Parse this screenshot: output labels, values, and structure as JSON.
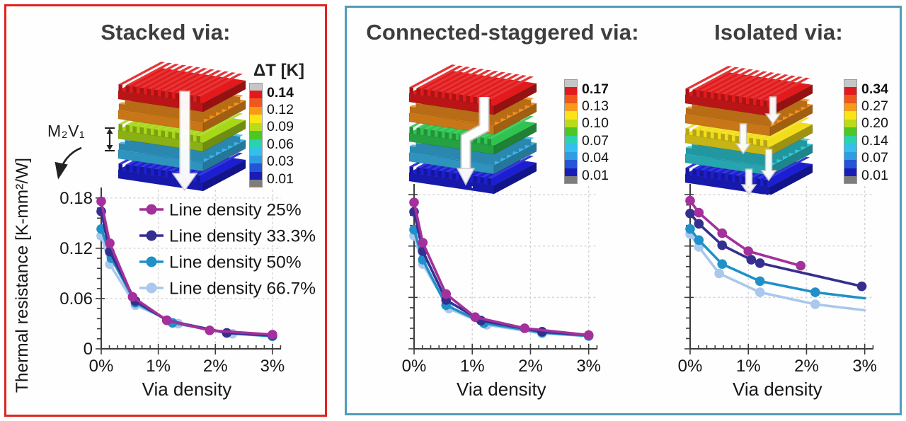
{
  "colorbar_colors": [
    "#c6c6c6",
    "#e21a1c",
    "#ef571d",
    "#f79b17",
    "#fbe316",
    "#b9dc19",
    "#4cc723",
    "#2ad3ae",
    "#33c0ea",
    "#2f9ce4",
    "#2356d6",
    "#1a1cb8",
    "#7d7d7d"
  ],
  "panels": [
    {
      "title": "Stacked via:",
      "border_color": "#e02420",
      "annotation_label": "M₂V₁",
      "colorbar": {
        "title": "ΔT [K]",
        "labels": [
          "0.14",
          "0.12",
          "0.09",
          "0.06",
          "0.03",
          "0.01"
        ],
        "first_label_bold": true
      },
      "stack": {
        "layers": [
          "#e21a1c",
          "#f4901c",
          "#a8d718",
          "#38b4e8",
          "#1b1ed2"
        ],
        "arrow": "straight",
        "dim_marker": true
      },
      "chart_index": 0
    },
    {
      "title": "Connected-staggered via:",
      "border_color": "#4e9dba",
      "colorbar": {
        "title": "",
        "labels": [
          "0.17",
          "0.13",
          "0.10",
          "0.07",
          "0.04",
          "0.01"
        ],
        "first_label_bold": true
      },
      "stack": {
        "layers": [
          "#e21a1c",
          "#f4901c",
          "#2ec44f",
          "#38b4e8",
          "#1b1ed2"
        ],
        "arrow": "staggered",
        "dim_marker": false
      },
      "chart_index": 1
    },
    {
      "title": "Isolated via:",
      "border_color": "#4e9dba",
      "colorbar": {
        "title": "",
        "labels": [
          "0.34",
          "0.27",
          "0.20",
          "0.14",
          "0.07",
          "0.01"
        ],
        "first_label_bold": true
      },
      "stack": {
        "layers": [
          "#e21a1c",
          "#f4901c",
          "#f2dd1a",
          "#2fc9d4",
          "#1b1ed2"
        ],
        "arrow": "multi",
        "dim_marker": false
      },
      "chart_index": 2
    }
  ],
  "chart_data": [
    {
      "type": "line",
      "title": "Stacked via",
      "xlabel": "Via density",
      "ylabel": "Thermal resistance [K-mm²/W]",
      "xlim": [
        0,
        3.15
      ],
      "ylim": [
        0,
        0.19
      ],
      "xticks": {
        "values": [
          0,
          1,
          2,
          3
        ],
        "labels": [
          "0%",
          "1%",
          "2%",
          "3%"
        ]
      },
      "yticks": {
        "values": [
          0,
          0.06,
          0.12,
          0.18
        ],
        "labels": [
          "0",
          "0.06",
          "0.12",
          "0.18"
        ]
      },
      "grid": true,
      "show_ytick_labels": true,
      "legend": true,
      "legend_position": "inside top right",
      "series": [
        {
          "name": "Line density 25%",
          "color": "#a3309b",
          "x": [
            0,
            0.15,
            0.55,
            1.15,
            1.9,
            3.0
          ],
          "y": [
            0.176,
            0.126,
            0.062,
            0.034,
            0.022,
            0.017
          ]
        },
        {
          "name": "Line density 33.3%",
          "color": "#352f8f",
          "x": [
            0,
            0.15,
            0.6,
            1.15,
            2.2,
            3.0
          ],
          "y": [
            0.164,
            0.116,
            0.057,
            0.034,
            0.019,
            0.016
          ]
        },
        {
          "name": "Line density 50%",
          "color": "#2090c8",
          "x": [
            0,
            0.18,
            0.6,
            1.25,
            2.2,
            3.0
          ],
          "y": [
            0.143,
            0.108,
            0.055,
            0.031,
            0.019,
            0.015
          ]
        },
        {
          "name": "Line density 66.7%",
          "color": "#a9c8ec",
          "x": [
            0,
            0.15,
            0.6,
            1.35,
            2.3,
            3.0
          ],
          "y": [
            0.135,
            0.101,
            0.052,
            0.03,
            0.018,
            0.015
          ]
        }
      ]
    },
    {
      "type": "line",
      "title": "Connected-staggered via",
      "xlabel": "Via density",
      "xlim": [
        0,
        3.15
      ],
      "ylim": [
        0,
        0.19
      ],
      "xticks": {
        "values": [
          0,
          1,
          2,
          3
        ],
        "labels": [
          "0%",
          "1%",
          "2%",
          "3%"
        ]
      },
      "yticks": {
        "values": [
          0,
          0.06,
          0.12,
          0.18
        ],
        "labels": [
          "",
          "",
          "",
          ""
        ]
      },
      "grid": true,
      "show_ytick_labels": false,
      "legend": false,
      "series": [
        {
          "name": "Line density 25%",
          "color": "#a3309b",
          "x": [
            0,
            0.15,
            0.55,
            1.05,
            1.9,
            3.0
          ],
          "y": [
            0.171,
            0.124,
            0.064,
            0.037,
            0.024,
            0.016
          ]
        },
        {
          "name": "Line density 33.3%",
          "color": "#352f8f",
          "x": [
            0,
            0.15,
            0.55,
            1.15,
            2.2,
            3.0
          ],
          "y": [
            0.16,
            0.114,
            0.057,
            0.033,
            0.02,
            0.016
          ]
        },
        {
          "name": "Line density 50%",
          "color": "#2090c8",
          "x": [
            0,
            0.15,
            0.55,
            1.2,
            2.2,
            3.0
          ],
          "y": [
            0.139,
            0.104,
            0.051,
            0.03,
            0.019,
            0.015
          ]
        },
        {
          "name": "Line density 66.7%",
          "color": "#a9c8ec",
          "x": [
            0,
            0.15,
            0.6,
            1.25,
            2.2,
            3.0
          ],
          "y": [
            0.132,
            0.099,
            0.047,
            0.028,
            0.018,
            0.015
          ]
        }
      ]
    },
    {
      "type": "line",
      "title": "Isolated via",
      "xlabel": "Via density",
      "xlim": [
        0,
        3.15
      ],
      "ylim": [
        0,
        0.19
      ],
      "xticks": {
        "values": [
          0,
          1,
          2,
          3
        ],
        "labels": [
          "0%",
          "1%",
          "2%",
          "3%"
        ]
      },
      "yticks": {
        "values": [
          0,
          0.06,
          0.12,
          0.18
        ],
        "labels": [
          "",
          "",
          "",
          ""
        ]
      },
      "grid": true,
      "show_ytick_labels": false,
      "legend": false,
      "series": [
        {
          "name": "Line density 25%",
          "color": "#a3309b",
          "x": [
            0,
            0.15,
            0.55,
            1.0,
            1.9
          ],
          "y": [
            0.173,
            0.159,
            0.135,
            0.114,
            0.097
          ]
        },
        {
          "name": "Line density 33.3%",
          "color": "#352f8f",
          "x": [
            0,
            0.15,
            0.55,
            1.05,
            1.2,
            2.95
          ],
          "y": [
            0.158,
            0.146,
            0.121,
            0.104,
            0.1,
            0.073
          ]
        },
        {
          "name": "Line density 50%",
          "color": "#2090c8",
          "x": [
            0,
            0.15,
            0.55,
            1.2,
            2.15,
            3.0
          ],
          "y": [
            0.14,
            0.127,
            0.099,
            0.079,
            0.066,
            0.059
          ],
          "open_end": true
        },
        {
          "name": "Line density 66.7%",
          "color": "#a9c8ec",
          "x": [
            0,
            0.15,
            0.5,
            1.2,
            2.15,
            3.0
          ],
          "y": [
            0.134,
            0.119,
            0.088,
            0.066,
            0.052,
            0.045
          ],
          "open_end": true
        }
      ]
    }
  ]
}
